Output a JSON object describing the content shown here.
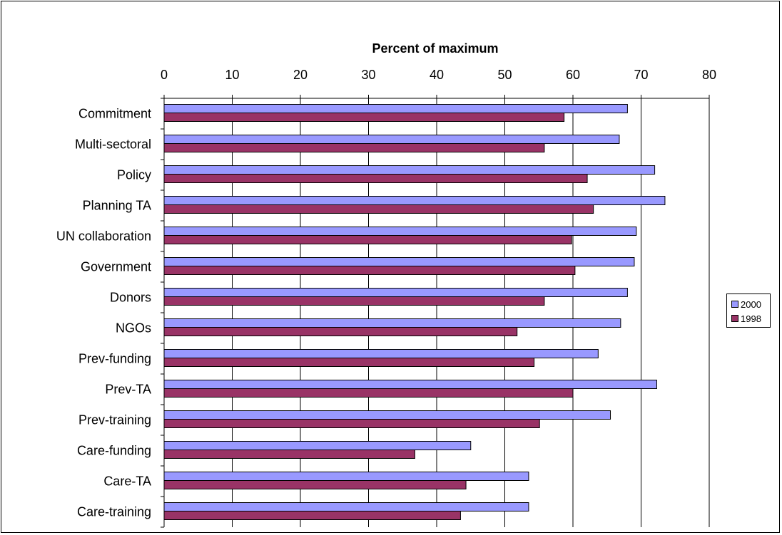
{
  "chart_data": {
    "type": "bar",
    "orientation": "horizontal",
    "title": "Percent of maximum",
    "xlim": [
      0,
      80
    ],
    "xticks": [
      0,
      10,
      20,
      30,
      40,
      50,
      60,
      70,
      80
    ],
    "grid": true,
    "legend_position": "right",
    "categories": [
      "Commitment",
      "Multi-sectoral",
      "Policy",
      "Planning TA",
      "UN collaboration",
      "Government",
      "Donors",
      "NGOs",
      "Prev-funding",
      "Prev-TA",
      "Prev-training",
      "Care-funding",
      "Care-TA",
      "Care-training"
    ],
    "series": [
      {
        "name": "2000",
        "color": "#9999ff",
        "values": [
          68,
          66.8,
          72,
          73.5,
          69.3,
          69,
          68,
          67,
          63.7,
          72.3,
          65.5,
          45,
          53.5,
          53.5
        ]
      },
      {
        "name": "1998",
        "color": "#993366",
        "values": [
          58.7,
          55.8,
          62.1,
          63,
          59.8,
          60.3,
          55.8,
          51.8,
          54.3,
          60,
          55.1,
          36.8,
          44.3,
          43.5
        ]
      }
    ]
  }
}
